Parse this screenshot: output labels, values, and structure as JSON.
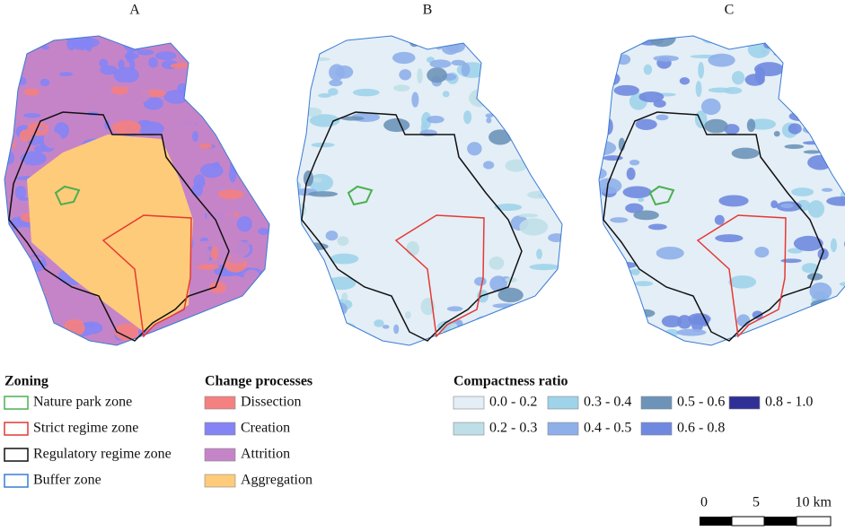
{
  "panels": [
    "A",
    "B",
    "C"
  ],
  "legends": {
    "zoning": {
      "title": "Zoning",
      "items": [
        {
          "label": "Nature park zone",
          "color": "#4caf50"
        },
        {
          "label": "Strict regime zone",
          "color": "#e53935"
        },
        {
          "label": "Regulatory regime zone",
          "color": "#111111"
        },
        {
          "label": "Buffer zone",
          "color": "#3a7bd5"
        }
      ]
    },
    "change": {
      "title": "Change processes",
      "items": [
        {
          "label": "Dissection",
          "color": "#f48080"
        },
        {
          "label": "Creation",
          "color": "#8484f5"
        },
        {
          "label": "Attrition",
          "color": "#c584c8"
        },
        {
          "label": "Aggregation",
          "color": "#fdcb7a"
        }
      ]
    },
    "compactness": {
      "title": "Compactness ratio",
      "items": [
        {
          "label": "0.0 - 0.2",
          "color": "#e4eef6"
        },
        {
          "label": "0.3 - 0.4",
          "color": "#9fd3ea"
        },
        {
          "label": "0.5 - 0.6",
          "color": "#6d93b9"
        },
        {
          "label": "0.8 - 1.0",
          "color": "#2f2f96"
        },
        {
          "label": "0.2 - 0.3",
          "color": "#bfdfe8"
        },
        {
          "label": "0.4 - 0.5",
          "color": "#8eafea"
        },
        {
          "label": "0.6 - 0.8",
          "color": "#6f89e0"
        }
      ]
    }
  },
  "scale_bar": {
    "labels": [
      "0",
      "5",
      "10 km"
    ]
  }
}
